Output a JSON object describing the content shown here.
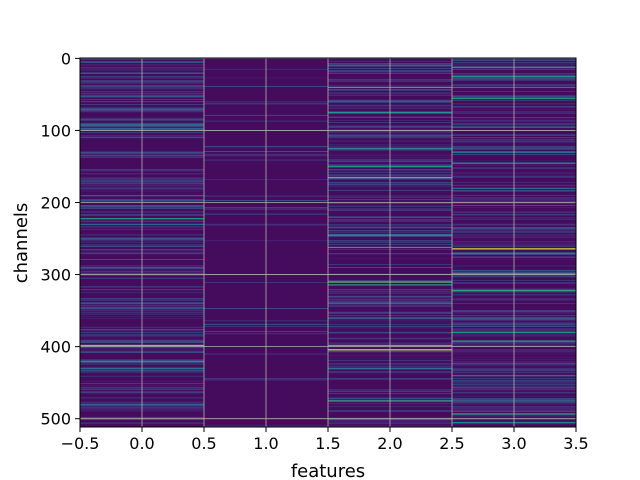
{
  "chart_data": {
    "type": "heatmap",
    "title": "",
    "xlabel": "features",
    "ylabel": "channels",
    "xlim": [
      -0.5,
      3.5
    ],
    "ylim": [
      511.5,
      -0.5
    ],
    "y_inverted": true,
    "grid": true,
    "colormap": "viridis",
    "n_rows": 512,
    "n_cols": 4,
    "x_ticks": [
      -0.5,
      0.0,
      0.5,
      1.0,
      1.5,
      2.0,
      2.5,
      3.0,
      3.5
    ],
    "x_tick_labels": [
      "−0.5",
      "0.0",
      "0.5",
      "1.0",
      "1.5",
      "2.0",
      "2.5",
      "3.0",
      "3.5"
    ],
    "y_ticks": [
      0,
      100,
      200,
      300,
      400,
      500
    ],
    "y_tick_labels": [
      "0",
      "100",
      "200",
      "300",
      "400",
      "500"
    ],
    "base_level": 0.03,
    "columns": [
      {
        "feature": 0,
        "noise_density": 0.3,
        "highlights": [
          {
            "channel": 5,
            "value": 0.3
          },
          {
            "channel": 20,
            "value": 0.25
          },
          {
            "channel": 38,
            "value": 0.3
          },
          {
            "channel": 52,
            "value": 0.4
          },
          {
            "channel": 70,
            "value": 0.35
          },
          {
            "channel": 85,
            "value": 0.3
          },
          {
            "channel": 92,
            "value": 0.45
          },
          {
            "channel": 97,
            "value": 0.3
          },
          {
            "channel": 130,
            "value": 0.25
          },
          {
            "channel": 190,
            "value": 0.25
          },
          {
            "channel": 222,
            "value": 0.5
          },
          {
            "channel": 230,
            "value": 0.35
          },
          {
            "channel": 250,
            "value": 0.3
          },
          {
            "channel": 290,
            "value": 0.25
          },
          {
            "channel": 340,
            "value": 0.25
          },
          {
            "channel": 398,
            "value": 0.8
          },
          {
            "channel": 400,
            "value": 0.45
          },
          {
            "channel": 420,
            "value": 0.5
          },
          {
            "channel": 430,
            "value": 0.35
          },
          {
            "channel": 480,
            "value": 0.3
          },
          {
            "channel": 500,
            "value": 0.3
          }
        ]
      },
      {
        "feature": 1,
        "noise_density": 0.06,
        "highlights": [
          {
            "channel": 60,
            "value": 0.12
          },
          {
            "channel": 230,
            "value": 0.12
          },
          {
            "channel": 410,
            "value": 0.12
          }
        ]
      },
      {
        "feature": 2,
        "noise_density": 0.32,
        "highlights": [
          {
            "channel": 10,
            "value": 0.35
          },
          {
            "channel": 40,
            "value": 0.6
          },
          {
            "channel": 60,
            "value": 0.35
          },
          {
            "channel": 75,
            "value": 0.55
          },
          {
            "channel": 125,
            "value": 0.5
          },
          {
            "channel": 150,
            "value": 0.55
          },
          {
            "channel": 165,
            "value": 0.7
          },
          {
            "channel": 220,
            "value": 0.35
          },
          {
            "channel": 245,
            "value": 0.5
          },
          {
            "channel": 262,
            "value": 0.55
          },
          {
            "channel": 310,
            "value": 0.75
          },
          {
            "channel": 314,
            "value": 0.55
          },
          {
            "channel": 340,
            "value": 0.35
          },
          {
            "channel": 360,
            "value": 0.4
          },
          {
            "channel": 398,
            "value": 0.7
          },
          {
            "channel": 404,
            "value": 0.9
          },
          {
            "channel": 430,
            "value": 0.35
          },
          {
            "channel": 475,
            "value": 0.6
          },
          {
            "channel": 500,
            "value": 0.5
          }
        ]
      },
      {
        "feature": 3,
        "noise_density": 0.36,
        "highlights": [
          {
            "channel": 12,
            "value": 0.6
          },
          {
            "channel": 25,
            "value": 0.5
          },
          {
            "channel": 40,
            "value": 0.4
          },
          {
            "channel": 55,
            "value": 0.6
          },
          {
            "channel": 95,
            "value": 0.4
          },
          {
            "channel": 130,
            "value": 0.4
          },
          {
            "channel": 145,
            "value": 0.45
          },
          {
            "channel": 180,
            "value": 0.35
          },
          {
            "channel": 235,
            "value": 0.4
          },
          {
            "channel": 264,
            "value": 0.95
          },
          {
            "channel": 270,
            "value": 0.55
          },
          {
            "channel": 298,
            "value": 0.5
          },
          {
            "channel": 322,
            "value": 0.6
          },
          {
            "channel": 360,
            "value": 0.4
          },
          {
            "channel": 380,
            "value": 0.5
          },
          {
            "channel": 392,
            "value": 0.6
          },
          {
            "channel": 440,
            "value": 0.4
          },
          {
            "channel": 475,
            "value": 0.4
          },
          {
            "channel": 493,
            "value": 0.6
          },
          {
            "channel": 505,
            "value": 0.45
          }
        ]
      }
    ]
  }
}
